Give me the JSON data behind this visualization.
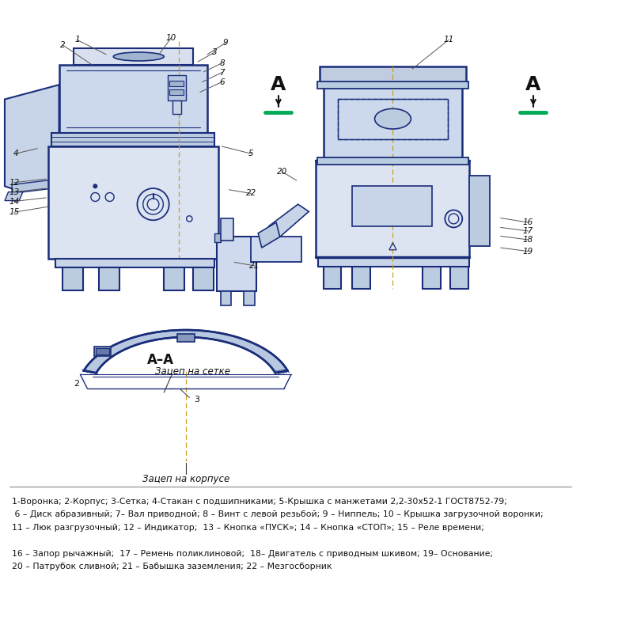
{
  "bg_color": "#ffffff",
  "lc": "#1a2d7a",
  "lc_light": "#3355aa",
  "tc": "#111111",
  "gc": "#00aa55",
  "dc": "#c8a000",
  "legend_lines": [
    "1-Воронка; 2-Корпус; 3-Сетка; 4-Стакан с подшипниками; 5-Крышка с манжетами 2,2-30х52-1 ГОСТ8752-79;",
    " 6 – Диск абразивный; 7– Вал приводной; 8 – Винт с левой резьбой; 9 – Ниппель; 10 – Крышка загрузочной воронки;",
    "11 – Люк разгрузочный; 12 – Индикатор;  13 – Кнопка «ПУСК»; 14 – Кнопка «СТОП»; 15 – Реле времени;",
    "",
    "16 – Запор рычажный;  17 – Ремень поликлиновой;  18– Двигатель с приводным шкивом; 19– Основание;",
    "20 – Патрубок сливной; 21 – Бабышка заземления; 22 – Мезгосборник"
  ]
}
